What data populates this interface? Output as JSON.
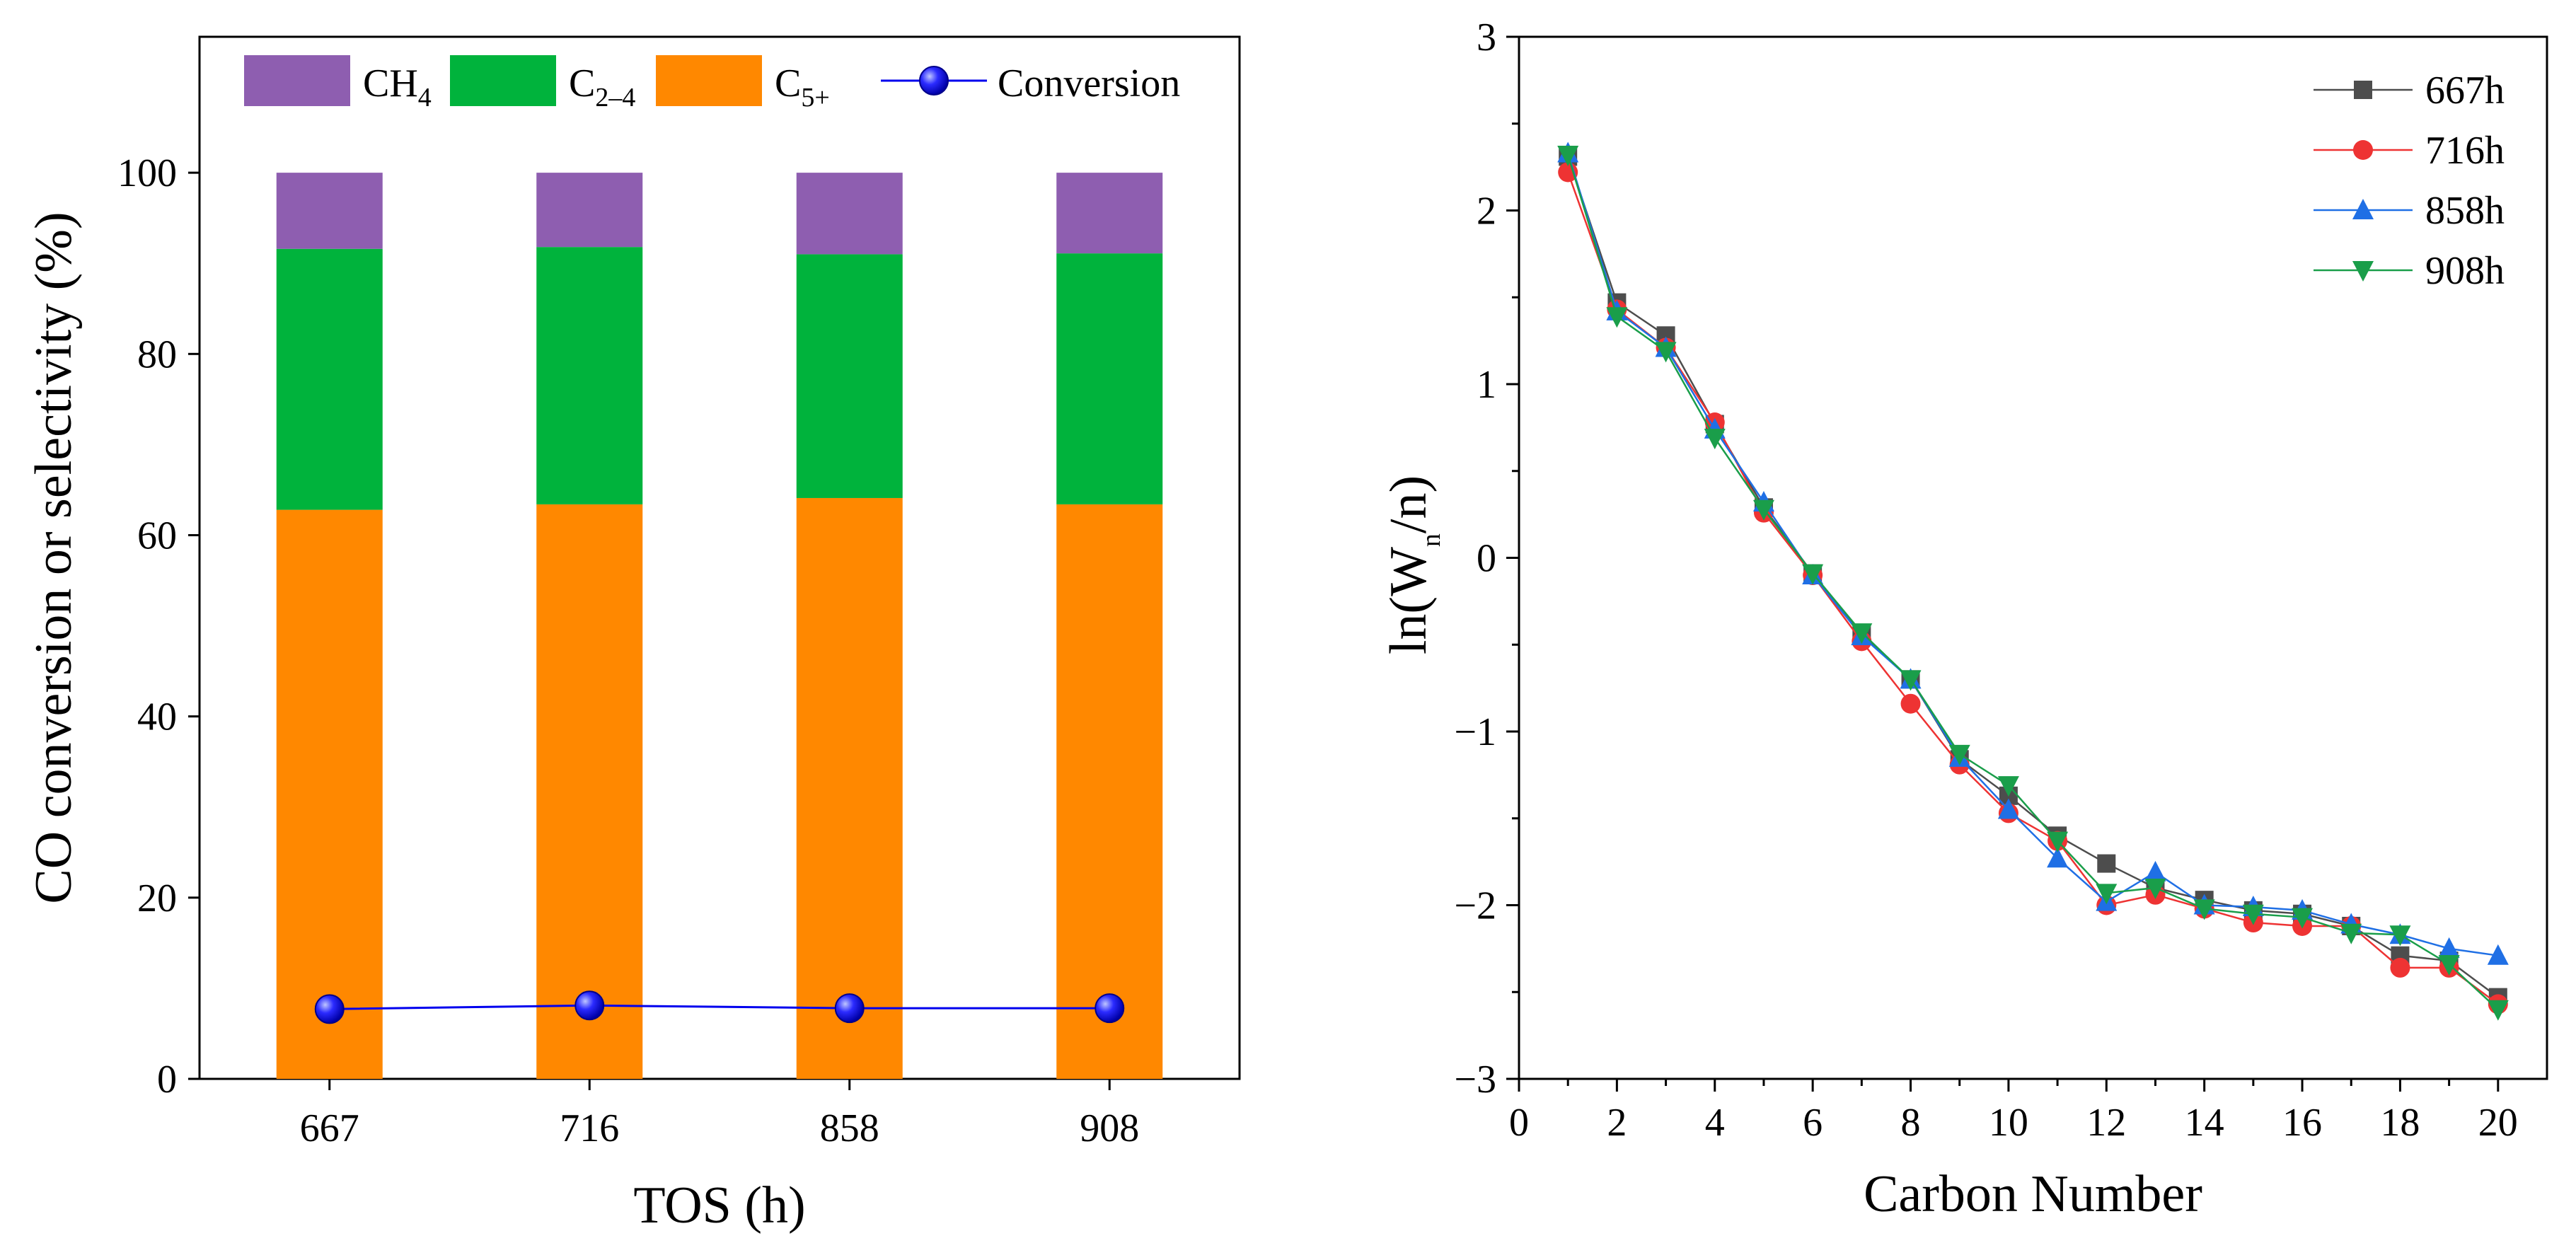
{
  "chart_data": [
    {
      "type": "bar",
      "stacked": true,
      "xlabel": "TOS (h)",
      "ylabel": "CO conversion or selectivity (%)",
      "ylim": [
        0,
        115
      ],
      "yticks": [
        0,
        20,
        40,
        60,
        80,
        100
      ],
      "categories": [
        "667",
        "716",
        "858",
        "908"
      ],
      "series": [
        {
          "name": "C5+",
          "label_main": "C",
          "label_sub": "5+",
          "color": "#ff8800",
          "values": [
            62.8,
            63.4,
            64.1,
            63.4
          ]
        },
        {
          "name": "C2–4",
          "label_main": "C",
          "label_sub": "2–4",
          "color": "#00b33c",
          "values": [
            28.8,
            28.4,
            26.9,
            27.7
          ]
        },
        {
          "name": "CH4",
          "label_main": "CH",
          "label_sub": "4",
          "color": "#8e5eb0",
          "values": [
            8.4,
            8.2,
            9.0,
            8.9
          ]
        }
      ],
      "line_series": {
        "name": "Conversion",
        "color": "#0000ee",
        "values": [
          7.7,
          8.1,
          7.8,
          7.8
        ]
      },
      "legend_order": [
        "CH4",
        "C2–4",
        "C5+",
        "Conversion"
      ],
      "legend_position": "top"
    },
    {
      "type": "line",
      "xlabel": "Carbon Number",
      "ylabel": "ln(Wn/n)",
      "ylabel_parts": {
        "pre": "ln(W",
        "sub": "n",
        "post": "/n)"
      },
      "xlim": [
        0,
        21
      ],
      "ylim": [
        -3,
        3
      ],
      "xticks": [
        0,
        2,
        4,
        6,
        8,
        10,
        12,
        14,
        16,
        18,
        20
      ],
      "yticks": [
        -3,
        -2,
        -1,
        0,
        1,
        2,
        3
      ],
      "ytick_labels": [
        "−3",
        "−2",
        "−1",
        "0",
        "1",
        "2",
        "3"
      ],
      "x": [
        1,
        2,
        3,
        4,
        5,
        6,
        7,
        8,
        9,
        10,
        11,
        12,
        13,
        14,
        15,
        16,
        17,
        18,
        19,
        20
      ],
      "legend_position": "top-right",
      "series": [
        {
          "name": "667h",
          "color": "#4d4d4d",
          "marker": "square",
          "values": [
            2.31,
            1.47,
            1.28,
            0.77,
            0.29,
            -0.09,
            -0.44,
            -0.7,
            -1.16,
            -1.37,
            -1.6,
            -1.76,
            -1.9,
            -1.97,
            -2.03,
            -2.05,
            -2.12,
            -2.29,
            -2.32,
            -2.53
          ]
        },
        {
          "name": "716h",
          "color": "#ee3333",
          "marker": "circle",
          "values": [
            2.22,
            1.43,
            1.21,
            0.78,
            0.26,
            -0.1,
            -0.48,
            -0.84,
            -1.19,
            -1.47,
            -1.63,
            -2.0,
            -1.94,
            -2.02,
            -2.1,
            -2.12,
            -2.12,
            -2.36,
            -2.36,
            -2.57
          ]
        },
        {
          "name": "858h",
          "color": "#1f6fe5",
          "marker": "triangle-up",
          "values": [
            2.33,
            1.42,
            1.21,
            0.74,
            0.32,
            -0.1,
            -0.45,
            -0.7,
            -1.15,
            -1.45,
            -1.73,
            -1.98,
            -1.81,
            -2.0,
            -2.01,
            -2.03,
            -2.11,
            -2.17,
            -2.25,
            -2.29
          ]
        },
        {
          "name": "908h",
          "color": "#1a9e4a",
          "marker": "triangle-down",
          "values": [
            2.32,
            1.39,
            1.19,
            0.69,
            0.28,
            -0.09,
            -0.43,
            -0.7,
            -1.13,
            -1.31,
            -1.63,
            -1.93,
            -1.9,
            -2.02,
            -2.05,
            -2.07,
            -2.16,
            -2.17,
            -2.34,
            -2.6
          ]
        }
      ]
    }
  ]
}
